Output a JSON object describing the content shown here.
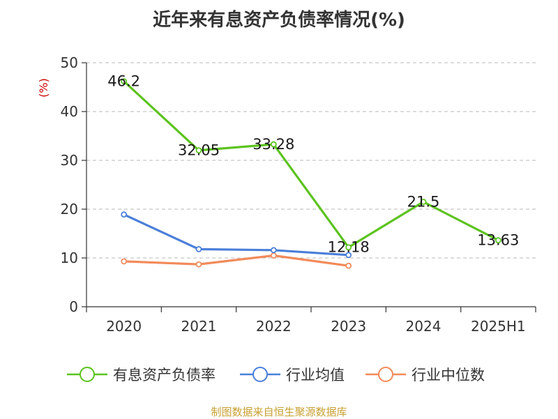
{
  "title": "近年来有息资产负债率情况(%)",
  "source": "制图数据来自恒生聚源数据库",
  "colors": {
    "title": "#333333",
    "axis_unit": "#cc0000",
    "axis_line": "#333333",
    "grid": "#c8c8c8",
    "source": "#c8a032"
  },
  "chart_data": {
    "type": "line",
    "title": "近年来有息资产负债率情况(%)",
    "ylabel": "(%)",
    "xlabel": "",
    "categories": [
      "2020",
      "2021",
      "2022",
      "2023",
      "2024",
      "2025H1"
    ],
    "ylim": [
      0,
      50
    ],
    "yticks": [
      0,
      10,
      20,
      30,
      40,
      50
    ],
    "grid": "horizontal dashed",
    "legend": "bottom-center",
    "series": [
      {
        "name": "有息资产负债率",
        "color": "#5cc31f",
        "values": [
          46.2,
          32.05,
          33.28,
          12.18,
          21.5,
          13.63
        ],
        "labels": [
          "46.2",
          "32.05",
          "33.28",
          "12.18",
          "21.5",
          "13.63"
        ],
        "show_labels": true
      },
      {
        "name": "行业均值",
        "color": "#4a7fd9",
        "values": [
          18.9,
          11.8,
          11.6,
          10.6,
          null,
          null
        ],
        "show_labels": false
      },
      {
        "name": "行业中位数",
        "color": "#f28a5a",
        "values": [
          9.3,
          8.7,
          10.5,
          8.4,
          null,
          null
        ],
        "show_labels": false
      }
    ]
  }
}
